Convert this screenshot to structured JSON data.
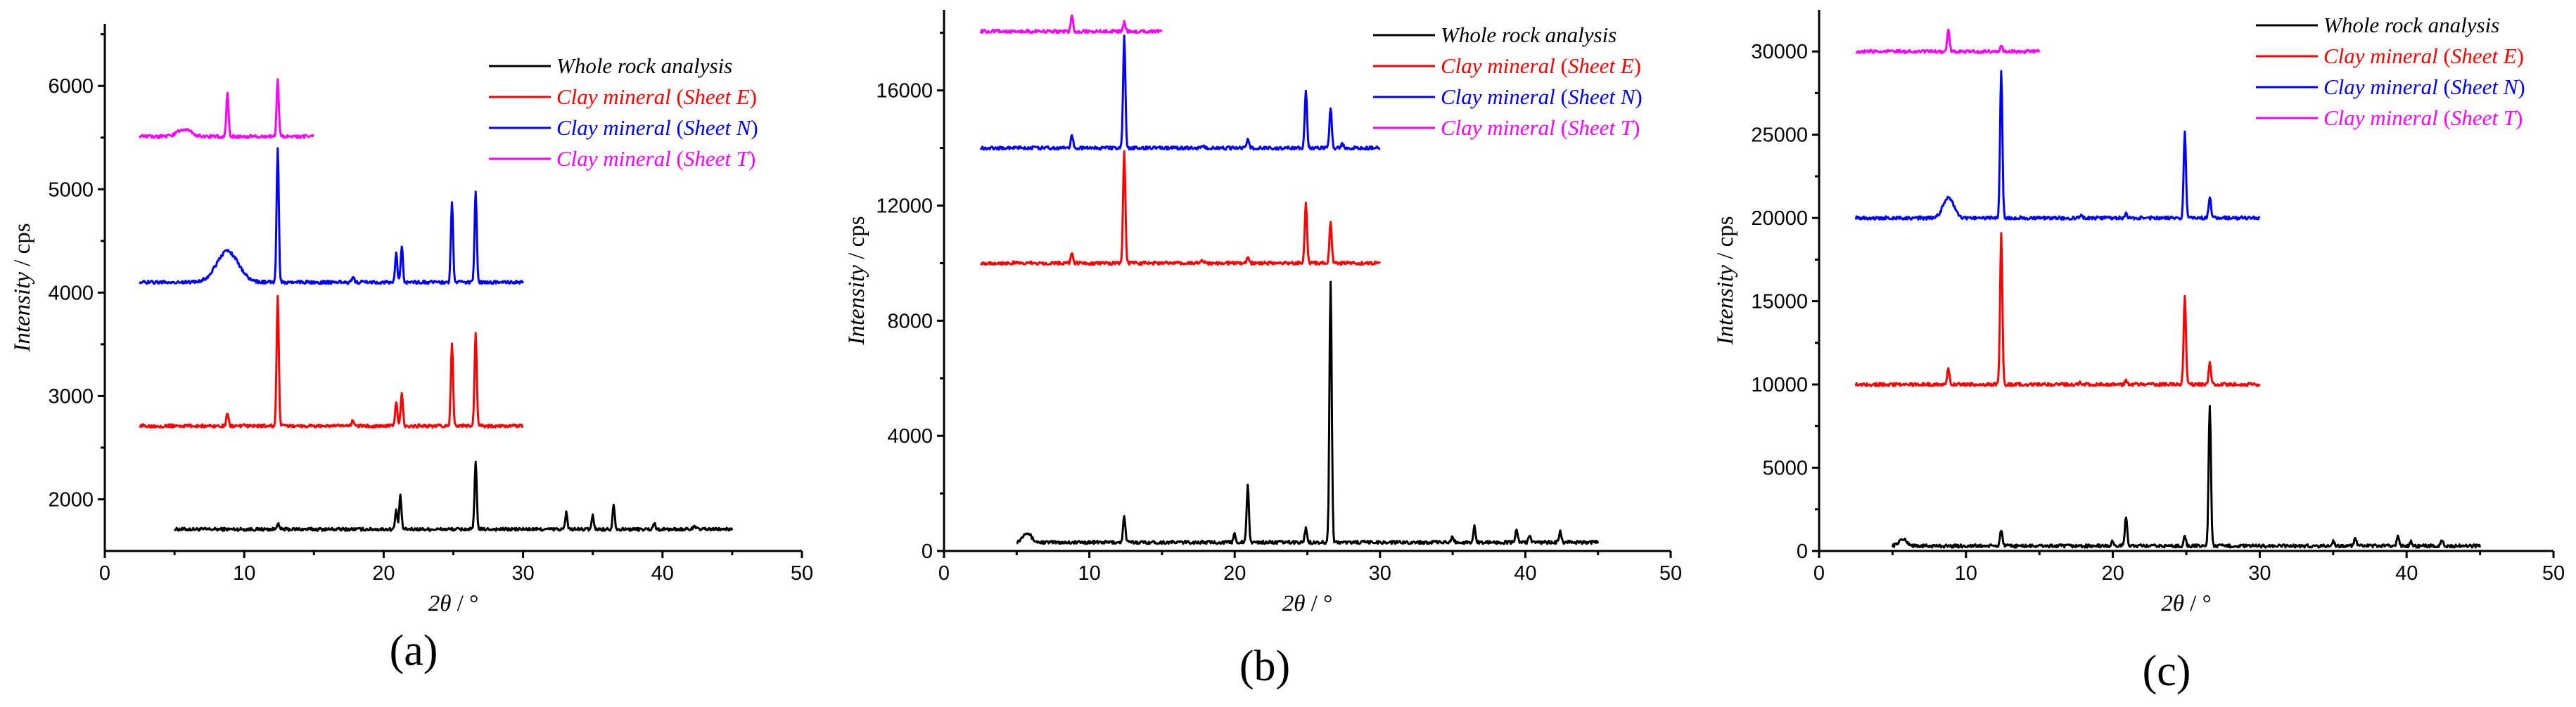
{
  "figure": {
    "panel_labels": [
      "(a)",
      "(b)",
      "(c)"
    ]
  },
  "chart_data": [
    {
      "type": "line",
      "panel": "(a)",
      "xlabel_symbol": "2θ",
      "xlabel_unit": " / °",
      "ylabel_symbol": "Intensity",
      "ylabel_unit": " / cps",
      "xlim": [
        0,
        50
      ],
      "ylim": [
        1500,
        6600
      ],
      "xticks": [
        0,
        10,
        20,
        30,
        40,
        50
      ],
      "yticks": [
        2000,
        3000,
        4000,
        5000,
        6000
      ],
      "legend_position": "top-right",
      "series": [
        {
          "name": "Whole rock analysis",
          "name_main": "Whole rock analysis",
          "name_sheet": "",
          "color": "#000000",
          "x_range": [
            5,
            45
          ],
          "baseline": 1710,
          "broad": [],
          "peaks": [
            [
              12.4,
              60
            ],
            [
              20.9,
              180
            ],
            [
              21.2,
              320
            ],
            [
              26.6,
              640
            ],
            [
              33.1,
              160
            ],
            [
              35.0,
              130
            ],
            [
              36.5,
              240
            ],
            [
              39.4,
              60
            ],
            [
              42.3,
              40
            ]
          ]
        },
        {
          "name": "Clay mineral (Sheet E)",
          "name_main": "Clay mineral",
          "name_sheet": "Sheet E",
          "color": "#ff0000",
          "x_range": [
            2.5,
            30
          ],
          "baseline": 2710,
          "broad": [],
          "peaks": [
            [
              8.8,
              120
            ],
            [
              12.4,
              1250
            ],
            [
              17.8,
              60
            ],
            [
              20.9,
              240
            ],
            [
              21.3,
              320
            ],
            [
              24.9,
              800
            ],
            [
              26.6,
              900
            ]
          ]
        },
        {
          "name": "Clay mineral (Sheet N)",
          "name_main": "Clay mineral",
          "name_sheet": "Sheet N",
          "color": "#0000ff",
          "x_range": [
            2.5,
            30
          ],
          "baseline": 4100,
          "broad": [
            [
              8.8,
              1.1,
              300
            ]
          ],
          "peaks": [
            [
              12.4,
              1300
            ],
            [
              17.8,
              60
            ],
            [
              20.9,
              280
            ],
            [
              21.3,
              350
            ],
            [
              24.9,
              780
            ],
            [
              26.6,
              880
            ]
          ]
        },
        {
          "name": "Clay mineral (Sheet T)",
          "name_main": "Clay mineral",
          "name_sheet": "Sheet T",
          "color": "#ff00ff",
          "x_range": [
            2.5,
            15
          ],
          "baseline": 5510,
          "broad": [
            [
              5.7,
              0.7,
              70
            ]
          ],
          "peaks": [
            [
              8.8,
              420
            ],
            [
              12.4,
              540
            ]
          ]
        }
      ]
    },
    {
      "type": "line",
      "panel": "(b)",
      "xlabel_symbol": "2θ",
      "xlabel_unit": " / °",
      "ylabel_symbol": "Intensity",
      "ylabel_unit": " / cps",
      "xlim": [
        0,
        50
      ],
      "ylim": [
        0,
        18800
      ],
      "xticks": [
        0,
        10,
        20,
        30,
        40,
        50
      ],
      "yticks": [
        0,
        4000,
        8000,
        12000,
        16000
      ],
      "legend_position": "top-right",
      "series": [
        {
          "name": "Whole rock analysis",
          "name_main": "Whole rock analysis",
          "name_sheet": "",
          "color": "#000000",
          "x_range": [
            5,
            45
          ],
          "baseline": 300,
          "broad": [
            [
              5.7,
              0.4,
              350
            ]
          ],
          "peaks": [
            [
              12.4,
              900
            ],
            [
              20.0,
              300
            ],
            [
              20.9,
              1950
            ],
            [
              24.9,
              500
            ],
            [
              26.6,
              9050
            ],
            [
              35.0,
              200
            ],
            [
              36.5,
              550
            ],
            [
              39.4,
              450
            ],
            [
              40.3,
              250
            ],
            [
              42.4,
              400
            ]
          ]
        },
        {
          "name": "Clay mineral (Sheet E)",
          "name_main": "Clay mineral",
          "name_sheet": "Sheet E",
          "color": "#ff0000",
          "x_range": [
            2.5,
            30
          ],
          "baseline": 10000,
          "broad": [],
          "peaks": [
            [
              8.8,
              350
            ],
            [
              12.4,
              3900
            ],
            [
              17.8,
              100
            ],
            [
              20.9,
              250
            ],
            [
              24.9,
              2100
            ],
            [
              26.6,
              1450
            ]
          ]
        },
        {
          "name": "Clay mineral (Sheet N)",
          "name_main": "Clay mineral",
          "name_sheet": "Sheet N",
          "color": "#0000ff",
          "x_range": [
            2.5,
            30
          ],
          "baseline": 14000,
          "broad": [],
          "peaks": [
            [
              8.8,
              450
            ],
            [
              12.4,
              3850
            ],
            [
              17.8,
              100
            ],
            [
              20.9,
              300
            ],
            [
              24.9,
              2000
            ],
            [
              26.6,
              1400
            ],
            [
              27.4,
              150
            ]
          ]
        },
        {
          "name": "Clay mineral (Sheet T)",
          "name_main": "Clay mineral",
          "name_sheet": "Sheet T",
          "color": "#ff00ff",
          "x_range": [
            2.5,
            15
          ],
          "baseline": 18050,
          "broad": [],
          "peaks": [
            [
              8.8,
              550
            ],
            [
              12.4,
              350
            ]
          ]
        }
      ]
    },
    {
      "type": "line",
      "panel": "(c)",
      "xlabel_symbol": "2θ",
      "xlabel_unit": " / °",
      "ylabel_symbol": "Intensity",
      "ylabel_unit": " / cps",
      "xlim": [
        0,
        50
      ],
      "ylim": [
        0,
        32500
      ],
      "xticks": [
        0,
        10,
        20,
        30,
        40,
        50
      ],
      "yticks": [
        0,
        5000,
        10000,
        15000,
        20000,
        25000,
        30000
      ],
      "legend_position": "top-right",
      "series": [
        {
          "name": "Whole rock analysis",
          "name_main": "Whole rock analysis",
          "name_sheet": "",
          "color": "#000000",
          "x_range": [
            5,
            45
          ],
          "baseline": 300,
          "broad": [
            [
              5.7,
              0.4,
              400
            ]
          ],
          "peaks": [
            [
              12.4,
              1000
            ],
            [
              20.0,
              300
            ],
            [
              20.9,
              1800
            ],
            [
              24.9,
              600
            ],
            [
              26.6,
              8500
            ],
            [
              35.0,
              300
            ],
            [
              36.5,
              500
            ],
            [
              39.4,
              600
            ],
            [
              40.3,
              250
            ],
            [
              42.4,
              400
            ]
          ]
        },
        {
          "name": "Clay mineral (Sheet E)",
          "name_main": "Clay mineral",
          "name_sheet": "Sheet E",
          "color": "#ff0000",
          "x_range": [
            2.5,
            30
          ],
          "baseline": 10000,
          "broad": [],
          "peaks": [
            [
              8.8,
              1000
            ],
            [
              12.4,
              9000
            ],
            [
              17.8,
              150
            ],
            [
              20.9,
              200
            ],
            [
              24.9,
              5300
            ],
            [
              26.6,
              1400
            ]
          ]
        },
        {
          "name": "Clay mineral (Sheet N)",
          "name_main": "Clay mineral",
          "name_sheet": "Sheet N",
          "color": "#0000ff",
          "x_range": [
            2.5,
            30
          ],
          "baseline": 20000,
          "broad": [
            [
              8.8,
              0.5,
              1250
            ]
          ],
          "peaks": [
            [
              12.4,
              8800
            ],
            [
              17.8,
              150
            ],
            [
              20.9,
              300
            ],
            [
              24.9,
              5200
            ],
            [
              26.6,
              1300
            ]
          ]
        },
        {
          "name": "Clay mineral (Sheet T)",
          "name_main": "Clay mineral",
          "name_sheet": "Sheet T",
          "color": "#ff00ff",
          "x_range": [
            2.5,
            15
          ],
          "baseline": 30000,
          "broad": [],
          "peaks": [
            [
              8.8,
              1300
            ],
            [
              12.4,
              400
            ]
          ]
        }
      ]
    }
  ]
}
